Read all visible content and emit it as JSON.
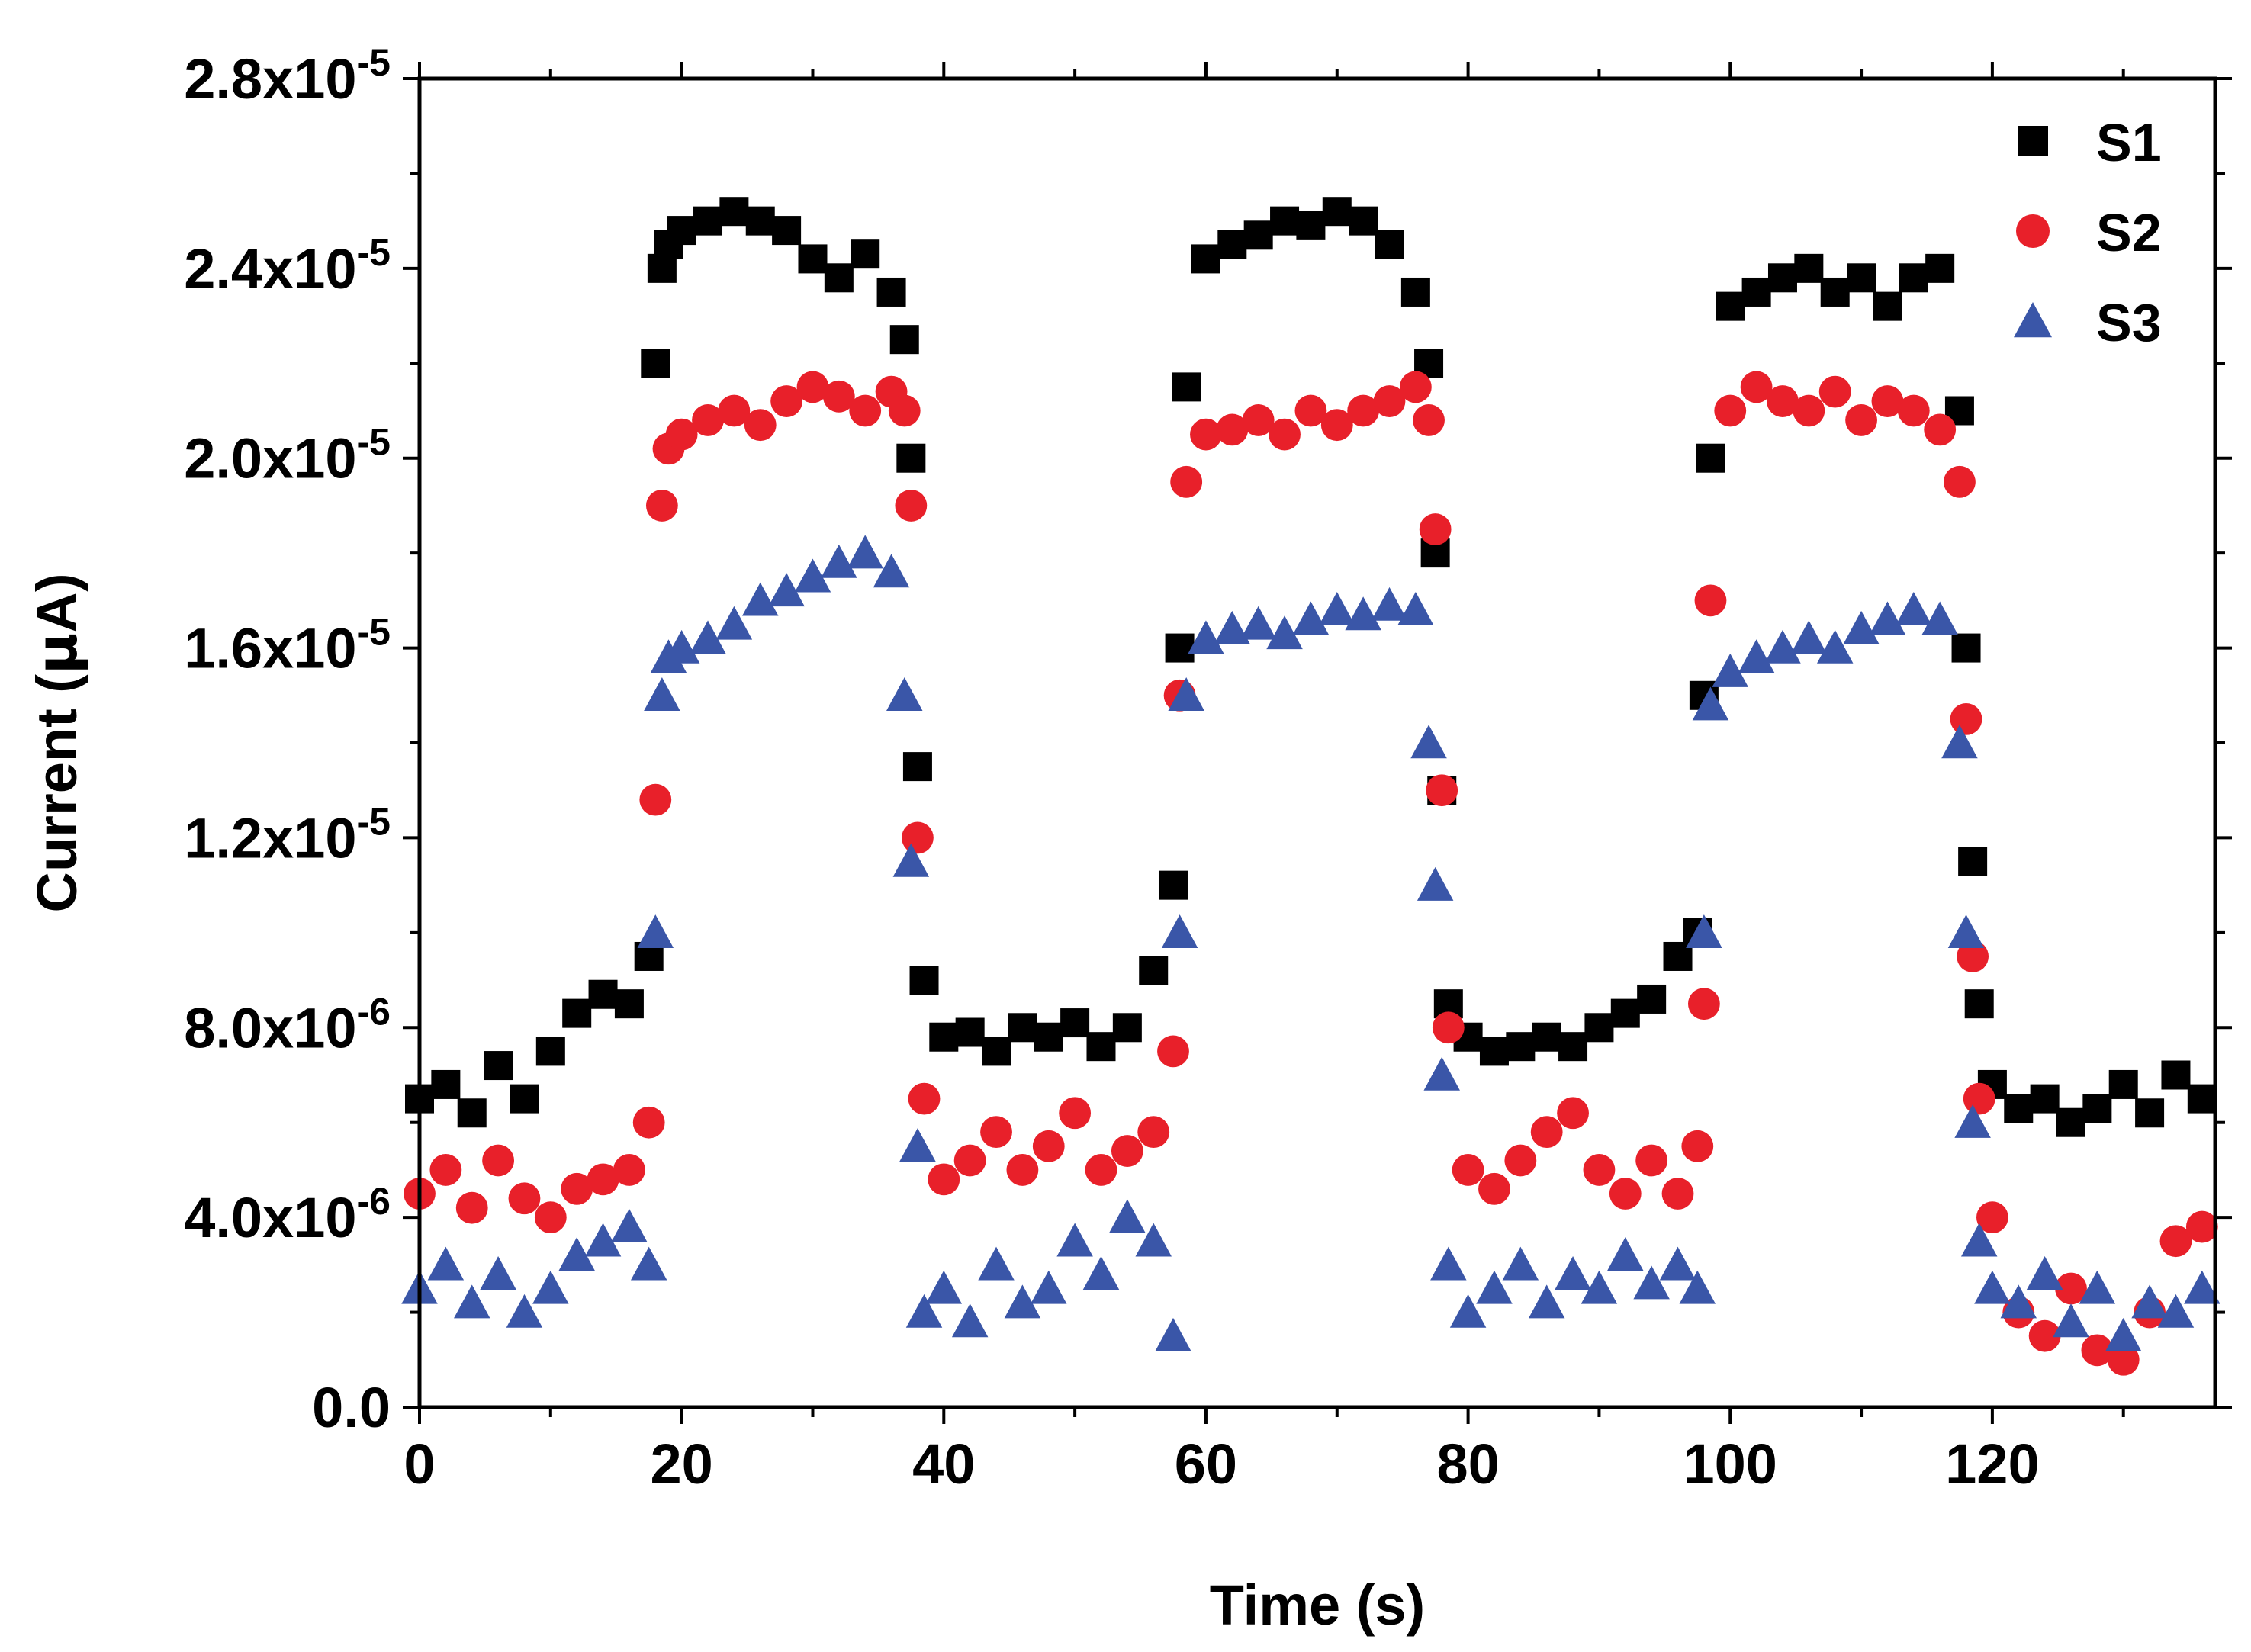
{
  "chart_data": {
    "type": "scatter",
    "title": "",
    "xlabel": "Time (s)",
    "ylabel_main": "Current (",
    "ylabel_mu": "μ",
    "ylabel_rest": "A)",
    "xlim": [
      0,
      137
    ],
    "ylim": [
      0,
      2.8e-05
    ],
    "x_ticks": [
      0,
      20,
      40,
      60,
      80,
      100,
      120
    ],
    "x_tick_labels": [
      "0",
      "20",
      "40",
      "60",
      "80",
      "100",
      "120"
    ],
    "y_ticks": [
      {
        "value": 0,
        "mantissa": "0.0",
        "exp": ""
      },
      {
        "value": 4e-06,
        "mantissa": "4.0x10",
        "exp": "-6"
      },
      {
        "value": 8e-06,
        "mantissa": "8.0x10",
        "exp": "-6"
      },
      {
        "value": 1.2e-05,
        "mantissa": "1.2x10",
        "exp": "-5"
      },
      {
        "value": 1.6e-05,
        "mantissa": "1.6x10",
        "exp": "-5"
      },
      {
        "value": 2e-05,
        "mantissa": "2.0x10",
        "exp": "-5"
      },
      {
        "value": 2.4e-05,
        "mantissa": "2.4x10",
        "exp": "-5"
      },
      {
        "value": 2.8e-05,
        "mantissa": "2.8x10",
        "exp": "-5"
      }
    ],
    "legend_position": "top-right",
    "series": [
      {
        "name": "S1",
        "marker": "square",
        "color": "#000000",
        "x": [
          0,
          2,
          4,
          6,
          8,
          10,
          12,
          14,
          16,
          17.5,
          18,
          18.5,
          19,
          20,
          22,
          24,
          26,
          28,
          30,
          32,
          34,
          36,
          37,
          37.5,
          38,
          38.5,
          40,
          42,
          44,
          46,
          48,
          50,
          52,
          54,
          56,
          57.5,
          58,
          58.5,
          60,
          62,
          64,
          66,
          68,
          70,
          72,
          74,
          76,
          77,
          77.5,
          78,
          78.5,
          80,
          82,
          84,
          86,
          88,
          90,
          92,
          94,
          96,
          97.5,
          98,
          98.5,
          100,
          102,
          104,
          106,
          108,
          110,
          112,
          114,
          116,
          117.5,
          118,
          118.5,
          119,
          120,
          122,
          124,
          126,
          128,
          130,
          132,
          134,
          136
        ],
        "y": [
          6.5e-06,
          6.8e-06,
          6.2e-06,
          7.2e-06,
          6.5e-06,
          7.5e-06,
          8.3e-06,
          8.7e-06,
          8.5e-06,
          9.5e-06,
          2.2e-05,
          2.4e-05,
          2.45e-05,
          2.48e-05,
          2.5e-05,
          2.52e-05,
          2.5e-05,
          2.48e-05,
          2.42e-05,
          2.38e-05,
          2.43e-05,
          2.35e-05,
          2.25e-05,
          2e-05,
          1.35e-05,
          9e-06,
          7.8e-06,
          7.9e-06,
          7.5e-06,
          8e-06,
          7.8e-06,
          8.1e-06,
          7.6e-06,
          8e-06,
          9.2e-06,
          1.1e-05,
          1.6e-05,
          2.15e-05,
          2.42e-05,
          2.45e-05,
          2.47e-05,
          2.5e-05,
          2.49e-05,
          2.52e-05,
          2.5e-05,
          2.45e-05,
          2.35e-05,
          2.2e-05,
          1.8e-05,
          1.3e-05,
          8.5e-06,
          7.8e-06,
          7.5e-06,
          7.6e-06,
          7.8e-06,
          7.6e-06,
          8e-06,
          8.3e-06,
          8.6e-06,
          9.5e-06,
          1e-05,
          1.5e-05,
          2e-05,
          2.32e-05,
          2.35e-05,
          2.38e-05,
          2.4e-05,
          2.35e-05,
          2.38e-05,
          2.32e-05,
          2.38e-05,
          2.4e-05,
          2.1e-05,
          1.6e-05,
          1.15e-05,
          8.5e-06,
          6.8e-06,
          6.3e-06,
          6.5e-06,
          6e-06,
          6.3e-06,
          6.8e-06,
          6.2e-06,
          7e-06,
          6.5e-06
        ]
      },
      {
        "name": "S2",
        "marker": "circle",
        "color": "#e8202a",
        "x": [
          0,
          2,
          4,
          6,
          8,
          10,
          12,
          14,
          16,
          17.5,
          18,
          18.5,
          19,
          20,
          22,
          24,
          26,
          28,
          30,
          32,
          34,
          36,
          37,
          37.5,
          38,
          38.5,
          40,
          42,
          44,
          46,
          48,
          50,
          52,
          54,
          56,
          57.5,
          58,
          58.5,
          60,
          62,
          64,
          66,
          68,
          70,
          72,
          74,
          76,
          77,
          77.5,
          78,
          78.5,
          80,
          82,
          84,
          86,
          88,
          90,
          92,
          94,
          96,
          97.5,
          98,
          98.5,
          100,
          102,
          104,
          106,
          108,
          110,
          112,
          114,
          116,
          117.5,
          118,
          118.5,
          119,
          120,
          122,
          124,
          126,
          128,
          130,
          132,
          134,
          136
        ],
        "y": [
          4.5e-06,
          5e-06,
          4.2e-06,
          5.2e-06,
          4.4e-06,
          4e-06,
          4.6e-06,
          4.8e-06,
          5e-06,
          6e-06,
          1.28e-05,
          1.9e-05,
          2.02e-05,
          2.05e-05,
          2.08e-05,
          2.1e-05,
          2.07e-05,
          2.12e-05,
          2.15e-05,
          2.13e-05,
          2.1e-05,
          2.14e-05,
          2.1e-05,
          1.9e-05,
          1.2e-05,
          6.5e-06,
          4.8e-06,
          5.2e-06,
          5.8e-06,
          5e-06,
          5.5e-06,
          6.2e-06,
          5e-06,
          5.4e-06,
          5.8e-06,
          7.5e-06,
          1.5e-05,
          1.95e-05,
          2.05e-05,
          2.06e-05,
          2.08e-05,
          2.05e-05,
          2.1e-05,
          2.07e-05,
          2.1e-05,
          2.12e-05,
          2.15e-05,
          2.08e-05,
          1.85e-05,
          1.3e-05,
          8e-06,
          5e-06,
          4.6e-06,
          5.2e-06,
          5.8e-06,
          6.2e-06,
          5e-06,
          4.5e-06,
          5.2e-06,
          4.5e-06,
          5.5e-06,
          8.5e-06,
          1.7e-05,
          2.1e-05,
          2.15e-05,
          2.12e-05,
          2.1e-05,
          2.14e-05,
          2.08e-05,
          2.12e-05,
          2.1e-05,
          2.06e-05,
          1.95e-05,
          1.45e-05,
          9.5e-06,
          6.5e-06,
          4e-06,
          2e-06,
          1.5e-06,
          2.5e-06,
          1.2e-06,
          1e-06,
          2e-06,
          3.5e-06,
          3.8e-06
        ]
      },
      {
        "name": "S3",
        "marker": "triangle",
        "color": "#3a56a8",
        "x": [
          0,
          2,
          4,
          6,
          8,
          10,
          12,
          14,
          16,
          17.5,
          18,
          18.5,
          19,
          20,
          22,
          24,
          26,
          28,
          30,
          32,
          34,
          36,
          37,
          37.5,
          38,
          38.5,
          40,
          42,
          44,
          46,
          48,
          50,
          52,
          54,
          56,
          57.5,
          58,
          58.5,
          60,
          62,
          64,
          66,
          68,
          70,
          72,
          74,
          76,
          77,
          77.5,
          78,
          78.5,
          80,
          82,
          84,
          86,
          88,
          90,
          92,
          94,
          96,
          97.5,
          98,
          98.5,
          100,
          102,
          104,
          106,
          108,
          110,
          112,
          114,
          116,
          117.5,
          118,
          118.5,
          119,
          120,
          122,
          124,
          126,
          128,
          130,
          132,
          134,
          136
        ],
        "y": [
          2.5e-06,
          3e-06,
          2.2e-06,
          2.8e-06,
          2e-06,
          2.5e-06,
          3.2e-06,
          3.5e-06,
          3.8e-06,
          3e-06,
          1e-05,
          1.5e-05,
          1.58e-05,
          1.6e-05,
          1.62e-05,
          1.65e-05,
          1.7e-05,
          1.72e-05,
          1.75e-05,
          1.78e-05,
          1.8e-05,
          1.76e-05,
          1.5e-05,
          1.15e-05,
          5.5e-06,
          2e-06,
          2.5e-06,
          1.8e-06,
          3e-06,
          2.2e-06,
          2.5e-06,
          3.5e-06,
          2.8e-06,
          4e-06,
          3.5e-06,
          1.5e-06,
          1e-05,
          1.5e-05,
          1.62e-05,
          1.64e-05,
          1.65e-05,
          1.63e-05,
          1.66e-05,
          1.68e-05,
          1.67e-05,
          1.69e-05,
          1.68e-05,
          1.4e-05,
          1.1e-05,
          7e-06,
          3e-06,
          2e-06,
          2.5e-06,
          3e-06,
          2.2e-06,
          2.8e-06,
          2.5e-06,
          3.2e-06,
          2.6e-06,
          3e-06,
          2.5e-06,
          1e-05,
          1.48e-05,
          1.55e-05,
          1.58e-05,
          1.6e-05,
          1.62e-05,
          1.6e-05,
          1.64e-05,
          1.66e-05,
          1.68e-05,
          1.66e-05,
          1.4e-05,
          1e-05,
          6e-06,
          3.5e-06,
          2.5e-06,
          2.2e-06,
          2.8e-06,
          1.8e-06,
          2.5e-06,
          1.5e-06,
          2.2e-06,
          2e-06,
          2.5e-06
        ]
      }
    ]
  }
}
